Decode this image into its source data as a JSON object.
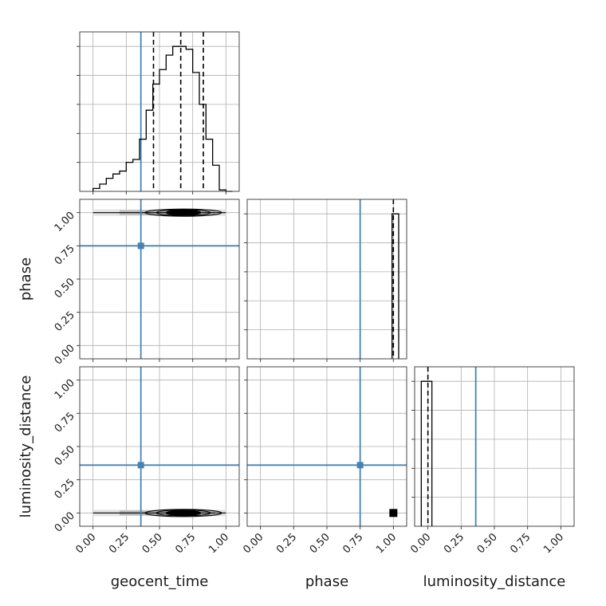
{
  "chart_data": {
    "type": "corner",
    "params": [
      "geocent_time",
      "phase",
      "luminosity_distance"
    ],
    "tick_labels": [
      "0.00",
      "0.25",
      "0.50",
      "0.75",
      "1.00"
    ],
    "ticks": [
      0,
      0.25,
      0.5,
      0.75,
      1.0
    ],
    "axis_range": [
      -0.1,
      1.1
    ],
    "grid": true,
    "colors": {
      "truth": "#4682b4",
      "hist": "#000000",
      "grid": "#b0b0b0"
    },
    "truths": {
      "geocent_time": 0.36,
      "phase": 0.75,
      "luminosity_distance": 0.36
    },
    "hist_1d": {
      "geocent_time": {
        "bin_edges": [
          0,
          0.05,
          0.1,
          0.15,
          0.2,
          0.25,
          0.3,
          0.35,
          0.4,
          0.45,
          0.5,
          0.55,
          0.6,
          0.65,
          0.7,
          0.75,
          0.8,
          0.85,
          0.9,
          0.95,
          1.0,
          1.05
        ],
        "counts": [
          0.02,
          0.05,
          0.09,
          0.12,
          0.14,
          0.2,
          0.22,
          0.36,
          0.56,
          0.74,
          0.84,
          0.94,
          1.0,
          1.0,
          0.98,
          0.82,
          0.6,
          0.36,
          0.18,
          0.01,
          0.0
        ],
        "quantiles": [
          0.455,
          0.66,
          0.83
        ],
        "ylim": [
          0,
          1.1
        ]
      },
      "phase": {
        "bin_edges": [
          0.99,
          1.0,
          1.04
        ],
        "counts": [
          1.0,
          1.0
        ],
        "quantiles": [
          1.0
        ],
        "ylim": [
          0,
          1.1
        ]
      },
      "luminosity_distance": {
        "bin_edges": [
          -0.05,
          -0.01,
          0.03
        ],
        "counts": [
          1.0,
          1.0
        ],
        "quantiles": [
          0.0
        ],
        "ylim": [
          0,
          1.1
        ]
      }
    },
    "density_2d": {
      "geocent_time_phase": {
        "x_range": [
          0.0,
          1.0
        ],
        "y": 1.0,
        "peak_x": 0.68
      },
      "geocent_time_luminosity_distance": {
        "x_range": [
          0.0,
          1.0
        ],
        "y": 0.0,
        "peak_x": 0.68
      },
      "phase_luminosity_distance": {
        "point": [
          1.0,
          0.0
        ]
      }
    }
  }
}
